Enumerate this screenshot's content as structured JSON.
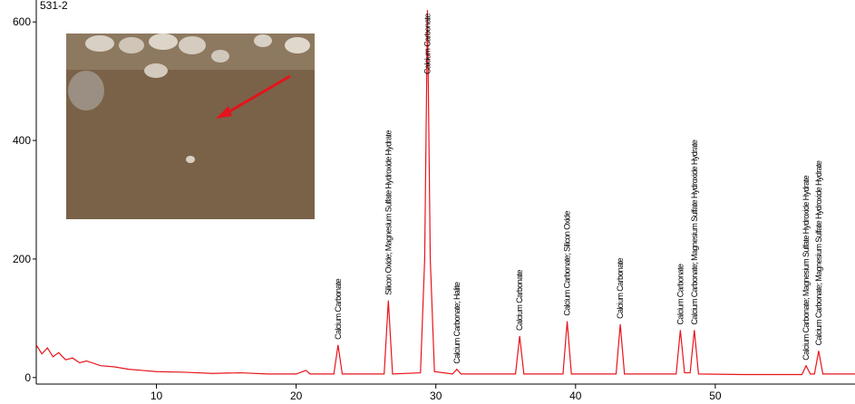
{
  "chart_data": {
    "type": "line",
    "title": "531-2",
    "x": [
      1.4,
      1.8,
      2.2,
      2.6,
      3,
      3.5,
      4,
      4.5,
      5,
      6,
      7,
      8,
      9,
      10,
      12,
      14,
      16,
      18,
      20,
      20.7,
      21,
      22.7,
      23.0,
      23.3,
      25,
      26.3,
      26.6,
      26.9,
      28.9,
      29.2,
      29.4,
      29.6,
      29.9,
      31.2,
      31.5,
      31.8,
      35.7,
      36.0,
      36.3,
      39.1,
      39.4,
      39.7,
      42.9,
      43.2,
      43.5,
      47.2,
      47.5,
      47.8,
      48.2,
      48.5,
      48.8,
      52,
      56.2,
      56.5,
      56.8,
      57.1,
      57.4,
      57.7,
      60
    ],
    "series": [
      {
        "color": "#e8141c",
        "values": [
          55,
          40,
          50,
          35,
          42,
          30,
          33,
          25,
          28,
          20,
          18,
          14,
          12,
          10,
          9,
          7,
          8,
          6,
          6,
          12,
          6,
          6,
          55,
          6,
          6,
          6,
          130,
          6,
          8,
          200,
          620,
          200,
          10,
          6,
          14,
          6,
          6,
          70,
          6,
          6,
          95,
          6,
          6,
          90,
          6,
          6,
          80,
          8,
          8,
          80,
          6,
          5,
          5,
          20,
          6,
          6,
          45,
          6,
          6
        ]
      }
    ],
    "annotations": [
      {
        "x": 23.0,
        "text": "Calcium Carbonate"
      },
      {
        "x": 26.6,
        "text": "Silicon Oxide; Magnesium Sulfate Hydroxide Hydrate"
      },
      {
        "x": 29.4,
        "text": "Calcium Carbonate"
      },
      {
        "x": 31.5,
        "text": "Calcium Carbonate; Halite"
      },
      {
        "x": 36.0,
        "text": "Calcium Carbonate"
      },
      {
        "x": 39.4,
        "text": "Calcium Carbonate; Silicon Oxide"
      },
      {
        "x": 43.2,
        "text": "Calcium Carbonate"
      },
      {
        "x": 47.5,
        "text": "Calcium Carbonate"
      },
      {
        "x": 48.5,
        "text": "Calcium Carbonate; Magnesium Sulfate Hydroxide Hydrate"
      },
      {
        "x": 56.5,
        "text": "Calcium Carbonate; Magnesium Sulfate Hydroxide Hydrate"
      },
      {
        "x": 57.4,
        "text": "Calcium Carbonate; Magnesium Sulfate Hydroxide Hydrate"
      }
    ],
    "xlim": [
      1.4,
      60
    ],
    "ylim": [
      -11,
      637
    ],
    "xticks": [
      10,
      20,
      30,
      40,
      50
    ],
    "yticks": [
      0,
      200,
      400,
      600
    ]
  }
}
